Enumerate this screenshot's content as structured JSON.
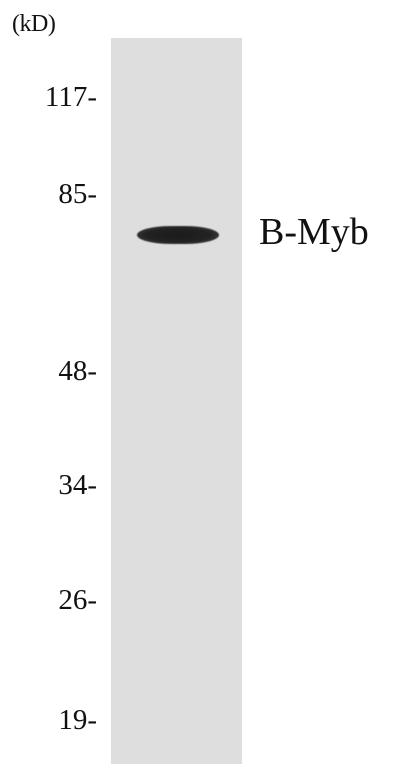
{
  "blot": {
    "unit_label": "(kD)",
    "markers": [
      "117-",
      "85-",
      "48-",
      "34-",
      "26-",
      "19-"
    ],
    "band_label": "B-Myb",
    "lane_color": "#dedede",
    "band_color": "#1b1b1b"
  }
}
